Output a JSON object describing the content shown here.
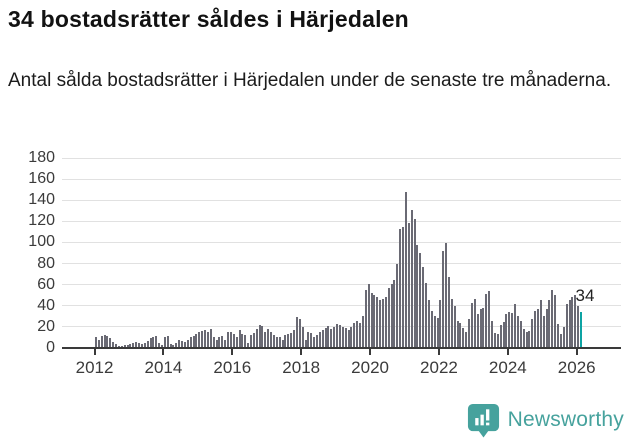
{
  "header": {
    "title": "34 bostadsrätter såldes i Härjedalen",
    "subtitle": "Antal sålda bostadsrätter i Härjedalen under de senaste tre månaderna."
  },
  "chart_data": {
    "type": "bar",
    "title": "34 bostadsrätter såldes i Härjedalen",
    "subtitle": "Antal sålda bostadsrätter i Härjedalen under de senaste tre månaderna.",
    "x_start": "2012-01",
    "x_end": "2026-02",
    "x_unit": "month",
    "x_tick_labels": [
      "2012",
      "2014",
      "2016",
      "2018",
      "2020",
      "2022",
      "2024",
      "2026"
    ],
    "y_tick_labels": [
      "0",
      "20",
      "40",
      "60",
      "80",
      "100",
      "120",
      "140",
      "160",
      "180"
    ],
    "ylim": [
      0,
      180
    ],
    "y_step": 20,
    "grid": "horizontal",
    "legend": "none",
    "annotation": "34",
    "annotation_value": 34,
    "highlight_last_bar": true,
    "values": [
      10,
      8,
      11,
      12,
      11,
      9,
      6,
      4,
      2,
      2,
      3,
      3,
      4,
      5,
      6,
      5,
      4,
      5,
      7,
      9,
      10,
      11,
      5,
      3,
      10,
      11,
      4,
      3,
      5,
      8,
      7,
      6,
      8,
      10,
      11,
      13,
      15,
      16,
      17,
      15,
      18,
      10,
      8,
      10,
      11,
      8,
      15,
      15,
      13,
      10,
      17,
      13,
      12,
      5,
      12,
      14,
      18,
      22,
      21,
      15,
      18,
      15,
      12,
      10,
      10,
      8,
      12,
      13,
      14,
      17,
      29,
      27,
      20,
      8,
      15,
      14,
      10,
      12,
      15,
      17,
      19,
      21,
      18,
      20,
      23,
      22,
      20,
      19,
      17,
      20,
      24,
      26,
      24,
      30,
      55,
      61,
      52,
      50,
      48,
      45,
      46,
      48,
      57,
      61,
      64,
      80,
      113,
      115,
      148,
      118,
      131,
      122,
      98,
      90,
      77,
      62,
      45,
      35,
      30,
      28,
      45,
      92,
      99,
      67,
      46,
      40,
      26,
      24,
      19,
      15,
      27,
      43,
      46,
      32,
      37,
      38,
      51,
      54,
      26,
      14,
      13,
      22,
      25,
      32,
      34,
      33,
      42,
      30,
      26,
      18,
      15,
      16,
      27,
      35,
      37,
      45,
      30,
      37,
      45,
      55,
      50,
      23,
      13,
      20,
      42,
      45,
      48,
      50,
      40,
      34
    ],
    "colors": {
      "bar": "#6a6a74",
      "highlight": "#0da3a3",
      "gridline": "#e1e1e1",
      "axis": "#3a3a3a",
      "text": "#3b3b3b"
    }
  },
  "footer": {
    "brand": "Newsworthy",
    "brand_color": "#46a29d",
    "logo_icon": "bar-chart-badge-icon"
  }
}
